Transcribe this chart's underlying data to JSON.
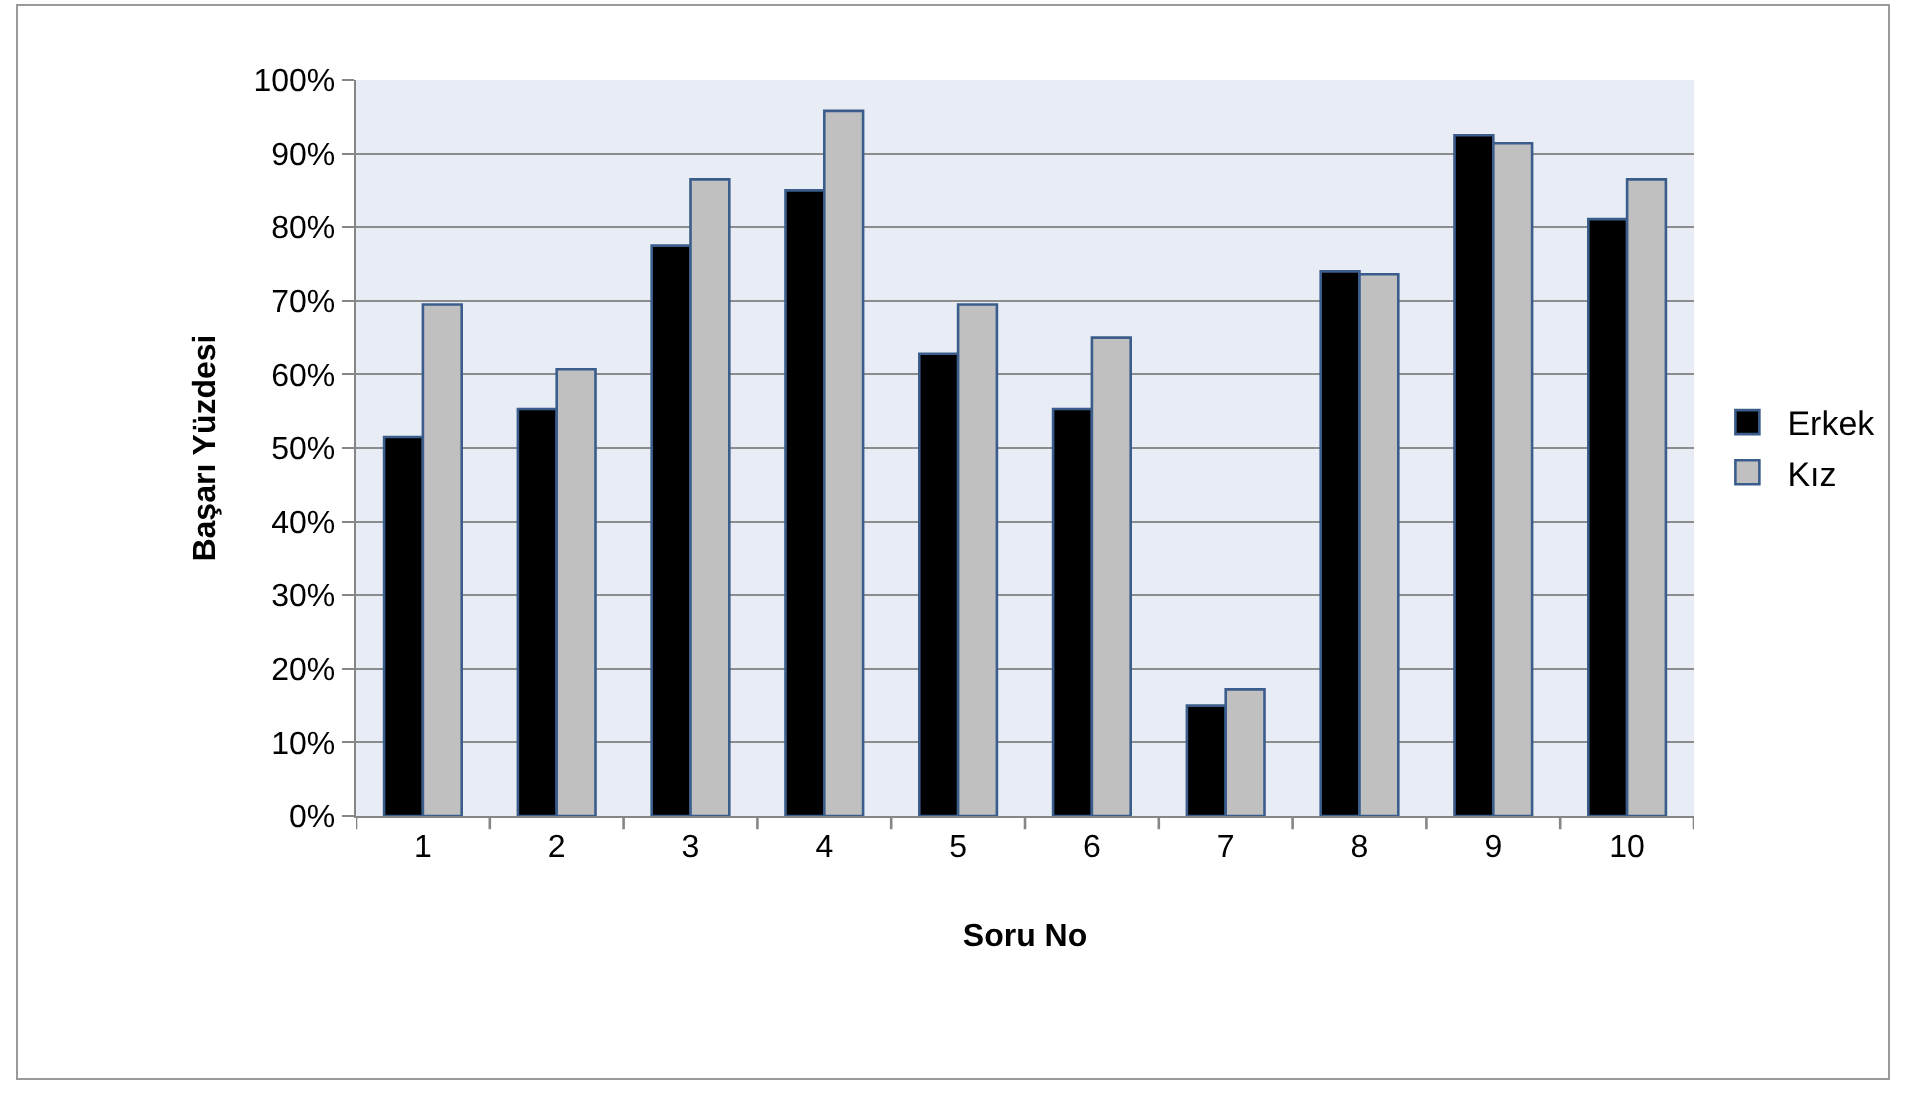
{
  "chart_data": {
    "type": "bar",
    "xlabel": "Soru No",
    "ylabel": "Başarı Yüzdesi",
    "categories": [
      "1",
      "2",
      "3",
      "4",
      "5",
      "6",
      "7",
      "8",
      "9",
      "10"
    ],
    "series": [
      {
        "name": "Erkek",
        "color": "#000000",
        "values": [
          51.5,
          55.3,
          77.5,
          85,
          62.8,
          55.3,
          15,
          74,
          92.5,
          81.1
        ]
      },
      {
        "name": "Kız",
        "color": "#c0c0c0",
        "values": [
          69.5,
          60.7,
          86.5,
          95.8,
          69.5,
          65,
          17.2,
          73.6,
          91.4,
          86.5
        ]
      }
    ],
    "ylim": [
      0,
      100
    ],
    "yticks": [
      {
        "value": 0,
        "label": "0%"
      },
      {
        "value": 10,
        "label": "10%"
      },
      {
        "value": 20,
        "label": "20%"
      },
      {
        "value": 30,
        "label": "30%"
      },
      {
        "value": 40,
        "label": "40%"
      },
      {
        "value": 50,
        "label": "50%"
      },
      {
        "value": 60,
        "label": "60%"
      },
      {
        "value": 70,
        "label": "70%"
      },
      {
        "value": 80,
        "label": "80%"
      },
      {
        "value": 90,
        "label": "90%"
      },
      {
        "value": 100,
        "label": "100%"
      }
    ],
    "grid": "y",
    "legend": "right"
  }
}
